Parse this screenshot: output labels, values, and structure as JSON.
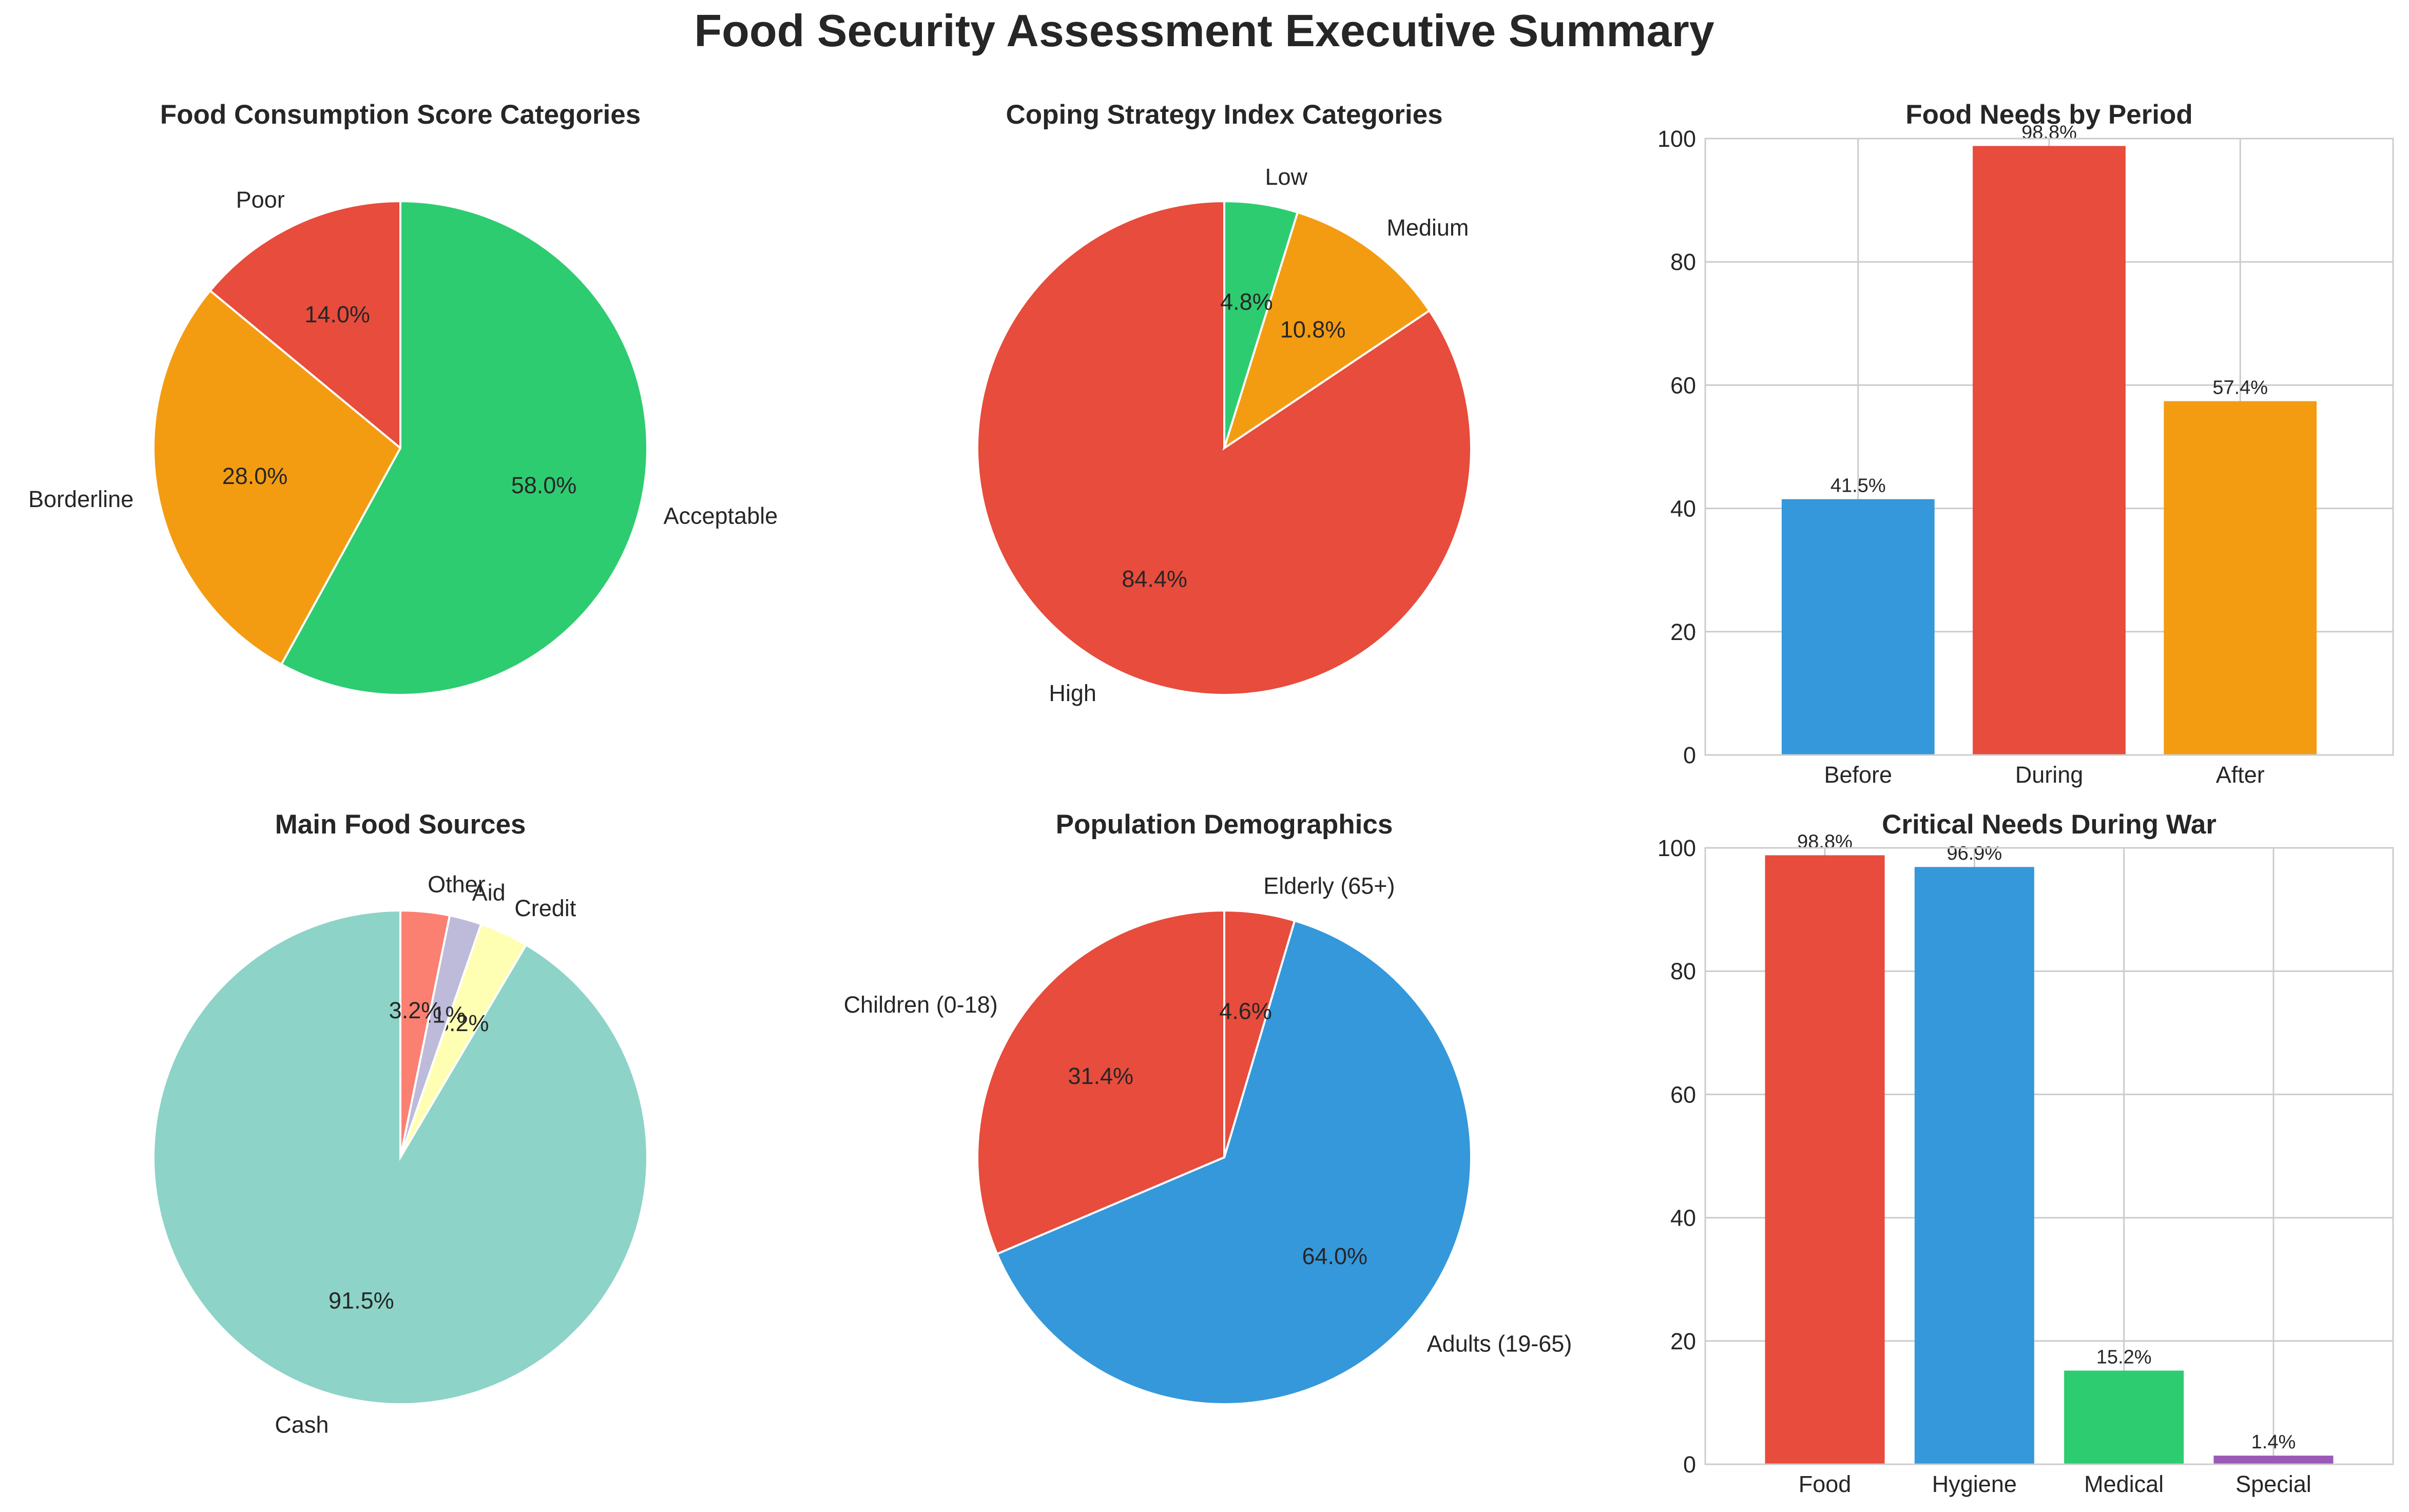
{
  "title": "Food Security Assessment Executive Summary",
  "chart_data": [
    {
      "type": "pie",
      "title": "Food Consumption Score Categories",
      "slices": [
        {
          "label": "Poor",
          "value": 14.0,
          "pct_text": "14.0%",
          "color": "#e74c3c"
        },
        {
          "label": "Borderline",
          "value": 28.0,
          "pct_text": "28.0%",
          "color": "#f39c12"
        },
        {
          "label": "Acceptable",
          "value": 58.0,
          "pct_text": "58.0%",
          "color": "#2ecc71"
        }
      ]
    },
    {
      "type": "pie",
      "title": "Coping Strategy Index Categories",
      "slices": [
        {
          "label": "High",
          "value": 84.4,
          "pct_text": "84.4%",
          "color": "#e74c3c"
        },
        {
          "label": "Medium",
          "value": 10.8,
          "pct_text": "10.8%",
          "color": "#f39c12"
        },
        {
          "label": "Low",
          "value": 4.8,
          "pct_text": "4.8%",
          "color": "#2ecc71"
        }
      ]
    },
    {
      "type": "bar",
      "title": "Food Needs by Period",
      "categories": [
        "Before",
        "During",
        "After"
      ],
      "values": [
        41.5,
        98.8,
        57.4
      ],
      "value_labels": [
        "41.5%",
        "98.8%",
        "57.4%"
      ],
      "colors": [
        "#3498db",
        "#e74c3c",
        "#f39c12"
      ],
      "ylim": [
        0,
        100
      ],
      "yticks": [
        0,
        20,
        40,
        60,
        80,
        100
      ],
      "grid": true
    },
    {
      "type": "pie",
      "title": "Main Food Sources",
      "slices": [
        {
          "label": "Cash",
          "value": 91.5,
          "pct_text": "91.5%",
          "color": "#8dd3c7"
        },
        {
          "label": "Credit",
          "value": 3.2,
          "pct_text": "3.2%",
          "color": "#ffffb3"
        },
        {
          "label": "Aid",
          "value": 2.1,
          "pct_text": "2.1%",
          "color": "#bebada"
        },
        {
          "label": "Other",
          "value": 3.2,
          "pct_text": "3.2%",
          "color": "#fb8072"
        }
      ]
    },
    {
      "type": "pie",
      "title": "Population Demographics",
      "slices": [
        {
          "label": "Children (0-18)",
          "value": 31.4,
          "pct_text": "31.4%",
          "color": "#e74c3c"
        },
        {
          "label": "Adults (19-65)",
          "value": 64.0,
          "pct_text": "64.0%",
          "color": "#3498db"
        },
        {
          "label": "Elderly (65+)",
          "value": 4.6,
          "pct_text": "4.6%",
          "color": "#e74c3c"
        }
      ]
    },
    {
      "type": "bar",
      "title": "Critical Needs During War",
      "categories": [
        "Food",
        "Hygiene",
        "Medical",
        "Special"
      ],
      "values": [
        98.8,
        96.9,
        15.2,
        1.4
      ],
      "value_labels": [
        "98.8%",
        "96.9%",
        "15.2%",
        "1.4%"
      ],
      "colors": [
        "#e74c3c",
        "#3498db",
        "#2ecc71",
        "#9b59b6"
      ],
      "ylim": [
        0,
        100
      ],
      "yticks": [
        0,
        20,
        40,
        60,
        80,
        100
      ],
      "grid": true
    }
  ]
}
